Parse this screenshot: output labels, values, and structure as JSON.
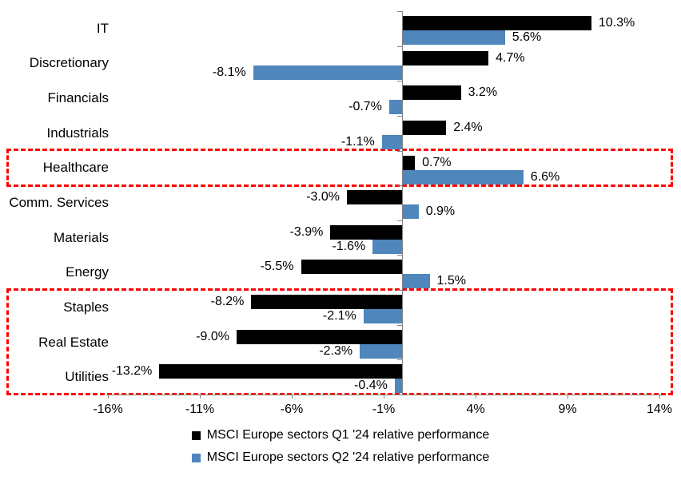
{
  "chart_data": {
    "type": "bar",
    "orientation": "horizontal",
    "categories": [
      "IT",
      "Discretionary",
      "Financials",
      "Industrials",
      "Healthcare",
      "Comm. Services",
      "Materials",
      "Energy",
      "Staples",
      "Real Estate",
      "Utilities"
    ],
    "series": [
      {
        "name": "MSCI Europe sectors Q1 '24 relative performance",
        "color": "#000000",
        "values": [
          10.3,
          4.7,
          3.2,
          2.4,
          0.7,
          -3.0,
          -3.9,
          -5.5,
          -8.2,
          -9.0,
          -13.2
        ],
        "labels": [
          "10.3%",
          "4.7%",
          "3.2%",
          "2.4%",
          "0.7%",
          "-3.0%",
          "-3.9%",
          "-5.5%",
          "-8.2%",
          "-9.0%",
          "-13.2%"
        ]
      },
      {
        "name": "MSCI Europe sectors Q2 '24 relative performance",
        "color": "#4F86BC",
        "values": [
          5.6,
          -8.1,
          -0.7,
          -1.1,
          6.6,
          0.9,
          -1.6,
          1.5,
          -2.1,
          -2.3,
          -0.4
        ],
        "labels": [
          "5.6%",
          "-8.1%",
          "-0.7%",
          "-1.1%",
          "6.6%",
          "0.9%",
          "-1.6%",
          "1.5%",
          "-2.1%",
          "-2.3%",
          "-0.4%"
        ]
      }
    ],
    "x_axis": {
      "tick_labels": [
        "-16%",
        "-11%",
        "-6%",
        "-1%",
        "4%",
        "9%",
        "14%"
      ],
      "tick_values": [
        -16,
        -11,
        -6,
        -1,
        4,
        9,
        14
      ],
      "xlim": [
        -16,
        14
      ],
      "grid": false,
      "axis_color": "#808080"
    },
    "legend": {
      "position": "bottom",
      "entries": [
        {
          "label": "MSCI Europe sectors Q1 '24 relative performance",
          "color": "#000000"
        },
        {
          "label": "MSCI Europe sectors Q2 '24 relative performance",
          "color": "#4F86BC"
        }
      ]
    },
    "annotations": {
      "highlight_boxes": [
        {
          "style": "dashed",
          "color": "#FF0000",
          "rows": [
            "Healthcare"
          ]
        },
        {
          "style": "dashed",
          "color": "#FF0000",
          "rows": [
            "Staples",
            "Real Estate",
            "Utilities"
          ]
        }
      ]
    }
  }
}
